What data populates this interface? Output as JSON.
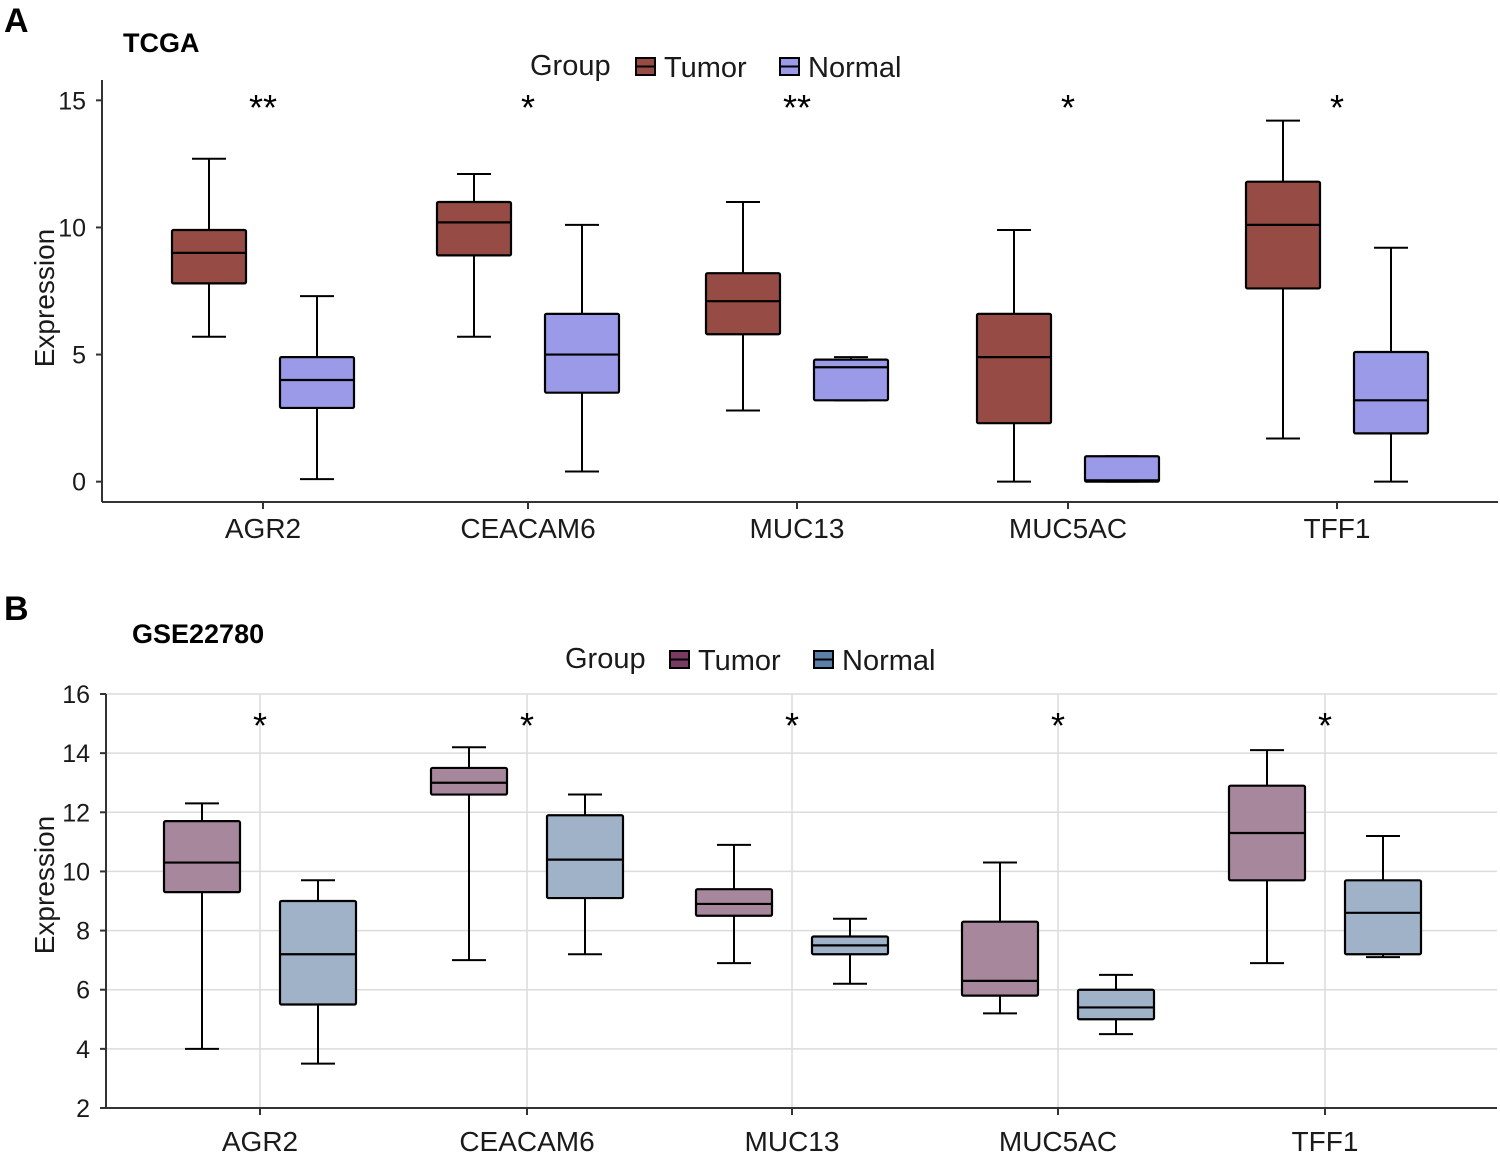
{
  "chart_data": [
    {
      "panel": "A",
      "type": "box",
      "title": "TCGA",
      "xlabel": "",
      "ylabel": "Expression",
      "ylim": [
        -0.8,
        15.8
      ],
      "yticks": [
        "0",
        "5",
        "10",
        "15"
      ],
      "ytick_values": [
        0,
        5,
        10,
        15
      ],
      "grid": false,
      "legend": {
        "title": "Group",
        "position": "top-center",
        "entries": [
          "Tumor",
          "Normal"
        ]
      },
      "categories": [
        "AGR2",
        "CEACAM6",
        "MUC13",
        "MUC5AC",
        "TFF1"
      ],
      "significance": [
        "**",
        "*",
        "**",
        "*",
        "*"
      ],
      "series": [
        {
          "name": "Tumor",
          "color": "#964b44",
          "boxes": [
            {
              "min": 5.7,
              "q1": 7.8,
              "median": 9.0,
              "q3": 9.9,
              "max": 12.7
            },
            {
              "min": 5.7,
              "q1": 8.9,
              "median": 10.2,
              "q3": 11.0,
              "max": 12.1
            },
            {
              "min": 2.8,
              "q1": 5.8,
              "median": 7.1,
              "q3": 8.2,
              "max": 11.0
            },
            {
              "min": 0.0,
              "q1": 2.3,
              "median": 4.9,
              "q3": 6.6,
              "max": 9.9
            },
            {
              "min": 1.7,
              "q1": 7.6,
              "median": 10.1,
              "q3": 11.8,
              "max": 14.2
            }
          ]
        },
        {
          "name": "Normal",
          "color": "#9a9ae8",
          "boxes": [
            {
              "min": 0.1,
              "q1": 2.9,
              "median": 4.0,
              "q3": 4.9,
              "max": 7.3
            },
            {
              "min": 0.4,
              "q1": 3.5,
              "median": 5.0,
              "q3": 6.6,
              "max": 10.1
            },
            {
              "min": 3.2,
              "q1": 3.2,
              "median": 4.5,
              "q3": 4.8,
              "max": 4.9
            },
            {
              "min": 0.0,
              "q1": 0.0,
              "median": 0.05,
              "q3": 1.0,
              "max": 1.0
            },
            {
              "min": 0.0,
              "q1": 1.9,
              "median": 3.2,
              "q3": 5.1,
              "max": 9.2
            }
          ]
        }
      ]
    },
    {
      "panel": "B",
      "type": "box",
      "title": "GSE22780",
      "xlabel": "",
      "ylabel": "Expression",
      "ylim": [
        2,
        16
      ],
      "yticks": [
        "2",
        "4",
        "6",
        "8",
        "10",
        "12",
        "14",
        "16"
      ],
      "ytick_values": [
        2,
        4,
        6,
        8,
        10,
        12,
        14,
        16
      ],
      "grid": true,
      "legend": {
        "title": "Group",
        "position": "top-center",
        "entries": [
          "Tumor",
          "Normal"
        ]
      },
      "categories": [
        "AGR2",
        "CEACAM6",
        "MUC13",
        "MUC5AC",
        "TFF1"
      ],
      "significance": [
        "*",
        "*",
        "*",
        "*",
        "*"
      ],
      "series": [
        {
          "name": "Tumor",
          "color": "#a6879c",
          "legend_color": "#7a3a62",
          "boxes": [
            {
              "min": 4.0,
              "q1": 9.3,
              "median": 10.3,
              "q3": 11.7,
              "max": 12.3
            },
            {
              "min": 7.0,
              "q1": 12.6,
              "median": 13.0,
              "q3": 13.5,
              "max": 14.2
            },
            {
              "min": 6.9,
              "q1": 8.5,
              "median": 8.9,
              "q3": 9.4,
              "max": 10.9
            },
            {
              "min": 5.2,
              "q1": 5.8,
              "median": 6.3,
              "q3": 8.3,
              "max": 10.3
            },
            {
              "min": 6.9,
              "q1": 9.7,
              "median": 11.3,
              "q3": 12.9,
              "max": 14.1
            }
          ]
        },
        {
          "name": "Normal",
          "color": "#9fb2c8",
          "legend_color": "#5b7fa8",
          "boxes": [
            {
              "min": 3.5,
              "q1": 5.5,
              "median": 7.2,
              "q3": 9.0,
              "max": 9.7
            },
            {
              "min": 7.2,
              "q1": 9.1,
              "median": 10.4,
              "q3": 11.9,
              "max": 12.6
            },
            {
              "min": 6.2,
              "q1": 7.2,
              "median": 7.5,
              "q3": 7.8,
              "max": 8.4
            },
            {
              "min": 4.5,
              "q1": 5.0,
              "median": 5.4,
              "q3": 6.0,
              "max": 6.5
            },
            {
              "min": 7.1,
              "q1": 7.2,
              "median": 8.6,
              "q3": 9.7,
              "max": 11.2
            }
          ]
        }
      ]
    }
  ]
}
